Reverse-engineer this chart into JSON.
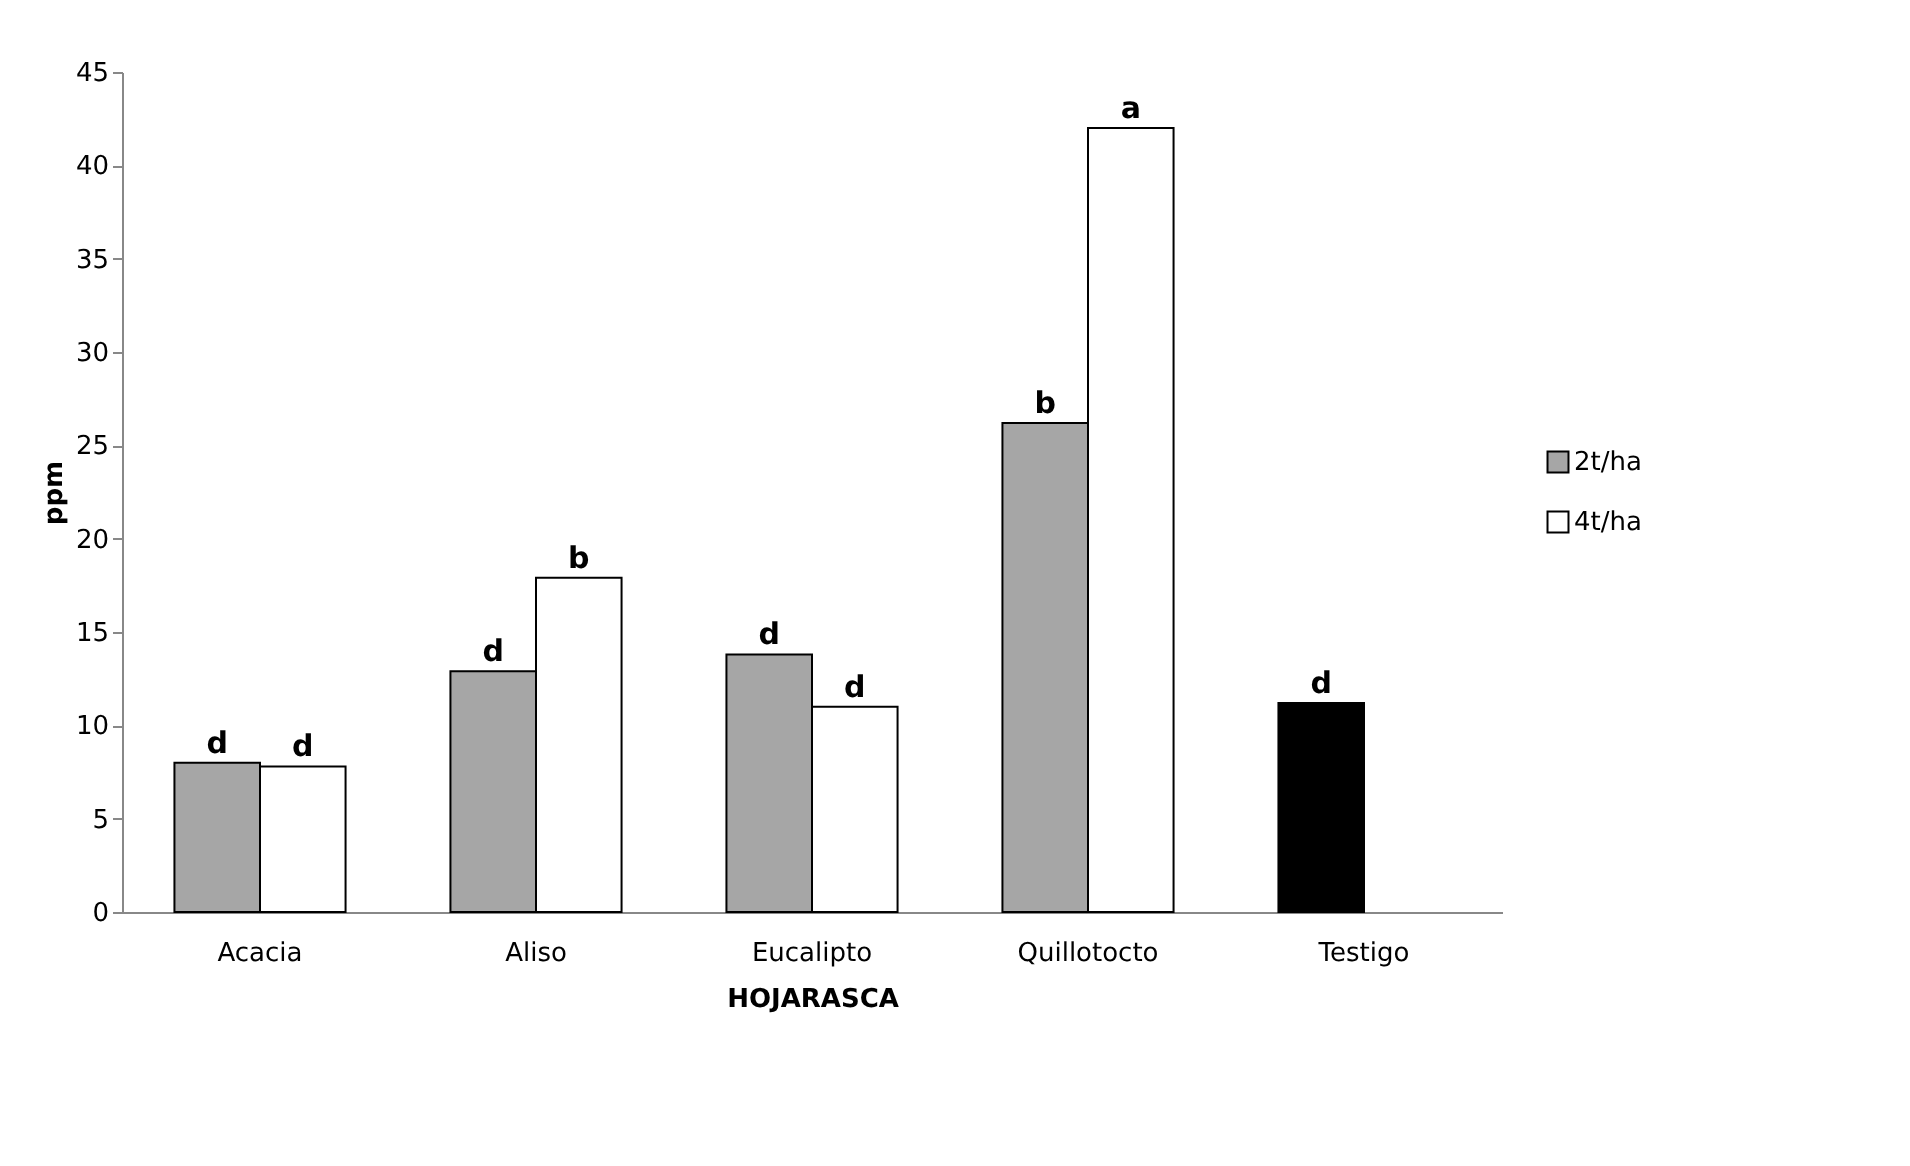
{
  "chart_data": {
    "type": "bar",
    "xlabel": "HOJARASCA",
    "ylabel": "ppm",
    "categories": [
      "Acacia",
      "Aliso",
      "Eucalipto",
      "Quillotocto",
      "Testigo"
    ],
    "series": [
      {
        "name": "2t/ha",
        "color": "#a6a6a6",
        "colors": [
          "#a6a6a6",
          "#a6a6a6",
          "#a6a6a6",
          "#a6a6a6",
          "#000000"
        ],
        "values": [
          8.0,
          12.9,
          13.8,
          26.2,
          11.2
        ],
        "value_labels": [
          "d",
          "d",
          "d",
          "b",
          "d"
        ]
      },
      {
        "name": "4t/ha",
        "color": "#ffffff",
        "values": [
          7.8,
          17.9,
          11.0,
          42.0,
          null
        ],
        "value_labels": [
          "d",
          "b",
          "d",
          "a",
          null
        ]
      }
    ],
    "ylim": [
      0,
      45
    ],
    "yticks": [
      0,
      5,
      10,
      15,
      20,
      25,
      30,
      35,
      40,
      45
    ],
    "grid": false,
    "legend": "right"
  }
}
